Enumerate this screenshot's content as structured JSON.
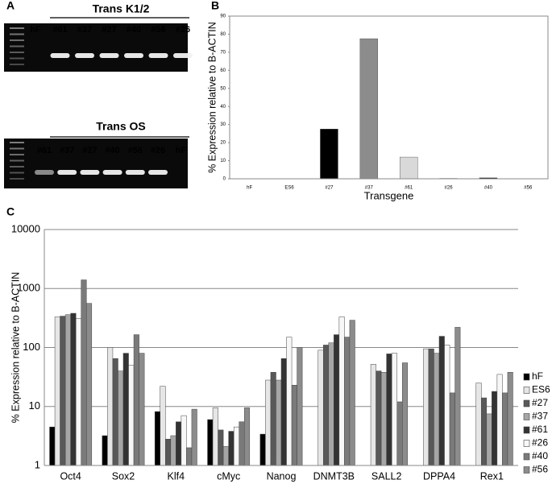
{
  "panel_a": {
    "panel": "A",
    "gels": [
      {
        "title": "Trans K1/2",
        "lanes": [
          "hF",
          "#61",
          "#37",
          "#27",
          "#40",
          "#56",
          "#26"
        ]
      },
      {
        "title": "Trans OS",
        "lanes": [
          "#61",
          "#37",
          "#27",
          "#40",
          "#56",
          "#26",
          "hF"
        ]
      }
    ]
  },
  "chart_data": [
    {
      "type": "bar",
      "panel": "B",
      "x_label": "Transgene",
      "y_label": "% Expression relative to B-ACTIN",
      "categories": [
        "hF",
        "ES6",
        "#27",
        "#37",
        "#61",
        "#26",
        "#40",
        "#56"
      ],
      "values": [
        0,
        0,
        27.5,
        77.5,
        12,
        0.2,
        0.5,
        0.1
      ],
      "colors": [
        "#000000",
        "#000000",
        "#000000",
        "#8c8c8c",
        "#d9d9d9",
        "#000000",
        "#000000",
        "#000000"
      ],
      "ylim": [
        0,
        90
      ],
      "yticks": [
        0,
        10,
        20,
        30,
        40,
        50,
        60,
        70,
        80,
        90
      ],
      "grid": false
    },
    {
      "type": "bar",
      "panel": "C",
      "y_label": "% Expression relative to B-ACTIN",
      "log_scale": true,
      "grid": true,
      "categories": [
        "Oct4",
        "Sox2",
        "Klf4",
        "cMyc",
        "Nanog",
        "DNMT3B",
        "SALL2",
        "DPPA4",
        "Rex1"
      ],
      "ylim": [
        1,
        10000
      ],
      "yticks": [
        1,
        10,
        100,
        1000,
        10000
      ],
      "legend": "right",
      "series": [
        {
          "name": "hF",
          "color": "#000000",
          "values": [
            4.5,
            3.2,
            8.2,
            6,
            3.4,
            null,
            null,
            null,
            null
          ]
        },
        {
          "name": "ES6",
          "color": "#e6e6e6",
          "values": [
            330,
            100,
            22,
            9.5,
            28,
            90,
            52,
            95,
            25
          ]
        },
        {
          "name": "#27",
          "color": "#595959",
          "values": [
            340,
            65,
            2.8,
            4,
            38,
            110,
            40,
            95,
            14
          ]
        },
        {
          "name": "#37",
          "color": "#a6a6a6",
          "values": [
            360,
            40,
            3.2,
            2.1,
            28,
            120,
            38,
            80,
            7.5
          ]
        },
        {
          "name": "#61",
          "color": "#333333",
          "values": [
            380,
            80,
            5.5,
            3.8,
            65,
            165,
            78,
            155,
            18
          ]
        },
        {
          "name": "#26",
          "color": "#f7f7f7",
          "values": [
            310,
            50,
            7,
            4.5,
            150,
            330,
            80,
            110,
            35
          ]
        },
        {
          "name": "#40",
          "color": "#7a7a7a",
          "values": [
            1400,
            165,
            2,
            5.5,
            23,
            150,
            12,
            17,
            17
          ]
        },
        {
          "name": "#56",
          "color": "#8c8c8c",
          "values": [
            560,
            80,
            9,
            9.5,
            100,
            290,
            55,
            220,
            38
          ]
        }
      ]
    }
  ]
}
